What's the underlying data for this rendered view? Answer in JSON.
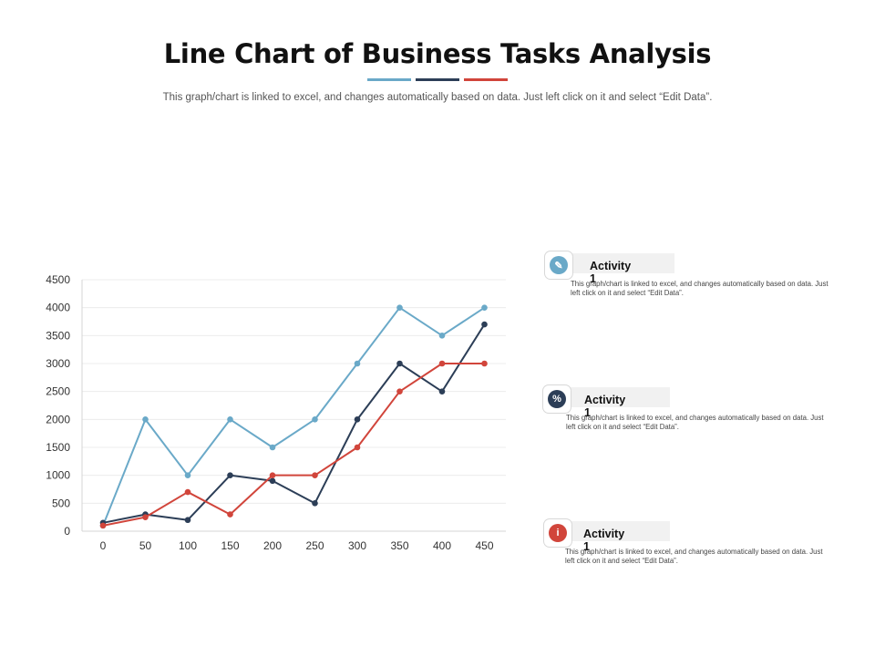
{
  "header": {
    "title": "Line Chart of Business Tasks Analysis",
    "subtitle": "This graph/chart is linked to excel, and changes automatically based on data.  Just left click on it and select “Edit Data”.",
    "accent_colors": [
      "#6aa9c8",
      "#2c3e57",
      "#d1453b"
    ]
  },
  "chart_data": {
    "type": "line",
    "x": [
      0,
      50,
      100,
      150,
      200,
      250,
      300,
      350,
      400,
      450
    ],
    "series": [
      {
        "color": "#6aa9c8",
        "values": [
          100,
          2000,
          1000,
          2000,
          1500,
          2000,
          3000,
          4000,
          3500,
          4000
        ]
      },
      {
        "color": "#2c3e57",
        "values": [
          150,
          300,
          200,
          1000,
          900,
          500,
          2000,
          3000,
          2500,
          3700
        ]
      },
      {
        "color": "#d1453b",
        "values": [
          100,
          250,
          700,
          300,
          1000,
          1000,
          1500,
          2500,
          3000,
          3000
        ]
      }
    ],
    "y_ticks": [
      0,
      500,
      1000,
      1500,
      2000,
      2500,
      3000,
      3500,
      4000,
      4500
    ],
    "x_ticks": [
      0,
      50,
      100,
      150,
      200,
      250,
      300,
      350,
      400,
      450
    ],
    "ylim": [
      0,
      4500
    ],
    "grid": true,
    "legend": "none"
  },
  "activities": [
    {
      "label": "Activity 1",
      "icon": "pencil-icon",
      "color": "#6aa9c8",
      "glyph": "✎",
      "desc": "This graph/chart is linked to excel, and changes automatically based on data.  Just left click on it and select “Edit Data”."
    },
    {
      "label": "Activity 1",
      "icon": "percent-icon",
      "color": "#2c3e57",
      "glyph": "%",
      "desc": "This graph/chart is linked to excel, and changes automatically based on data.  Just left click on it and select “Edit Data”."
    },
    {
      "label": "Activity 1",
      "icon": "info-icon",
      "color": "#d1453b",
      "glyph": "i",
      "desc": "This graph/chart is linked to excel, and changes automatically based on data.  Just left click on it and select “Edit Data”."
    }
  ]
}
